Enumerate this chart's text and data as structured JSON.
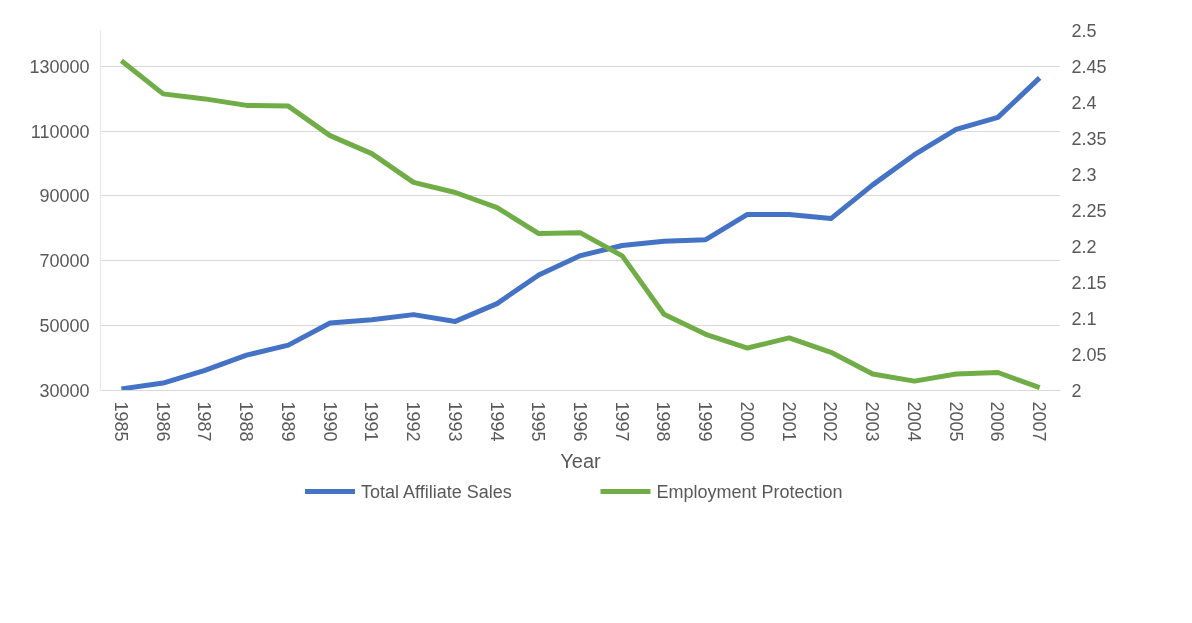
{
  "chart_data": {
    "type": "line",
    "xlabel": "Year",
    "categories": [
      "1985",
      "1986",
      "1987",
      "1988",
      "1989",
      "1990",
      "1991",
      "1992",
      "1993",
      "1994",
      "1995",
      "1996",
      "1997",
      "1998",
      "1999",
      "2000",
      "2001",
      "2002",
      "2003",
      "2004",
      "2005",
      "2006",
      "2007"
    ],
    "series": [
      {
        "name": "Total Affiliate Sales",
        "color": "#4472c4",
        "values": [
          30500,
          32300,
          36200,
          40900,
          44000,
          50800,
          51800,
          53400,
          51300,
          56800,
          65600,
          71600,
          74700,
          76000,
          76500,
          84300,
          84300,
          83000,
          93400,
          102700,
          110500,
          114200,
          126400
        ]
      },
      {
        "name": "Employment Protection",
        "color": "#70ad47",
        "axis": "y2",
        "values": [
          2.458,
          2.412,
          2.405,
          2.396,
          2.395,
          2.354,
          2.329,
          2.289,
          2.275,
          2.254,
          2.218,
          2.219,
          2.187,
          2.106,
          2.078,
          2.059,
          2.073,
          2.053,
          2.023,
          2.013,
          2.023,
          2.025,
          2.004
        ]
      }
    ],
    "ylim": [
      30000,
      141000
    ],
    "yticks": [
      30000,
      50000,
      70000,
      90000,
      110000,
      130000
    ],
    "y2lim": [
      2,
      2.5
    ],
    "y2ticks": [
      2,
      2.05,
      2.1,
      2.15,
      2.2,
      2.25,
      2.3,
      2.35,
      2.4,
      2.45,
      2.5
    ],
    "grid": "y",
    "legend": "bottom",
    "marker": "none",
    "line_style": "solid"
  }
}
